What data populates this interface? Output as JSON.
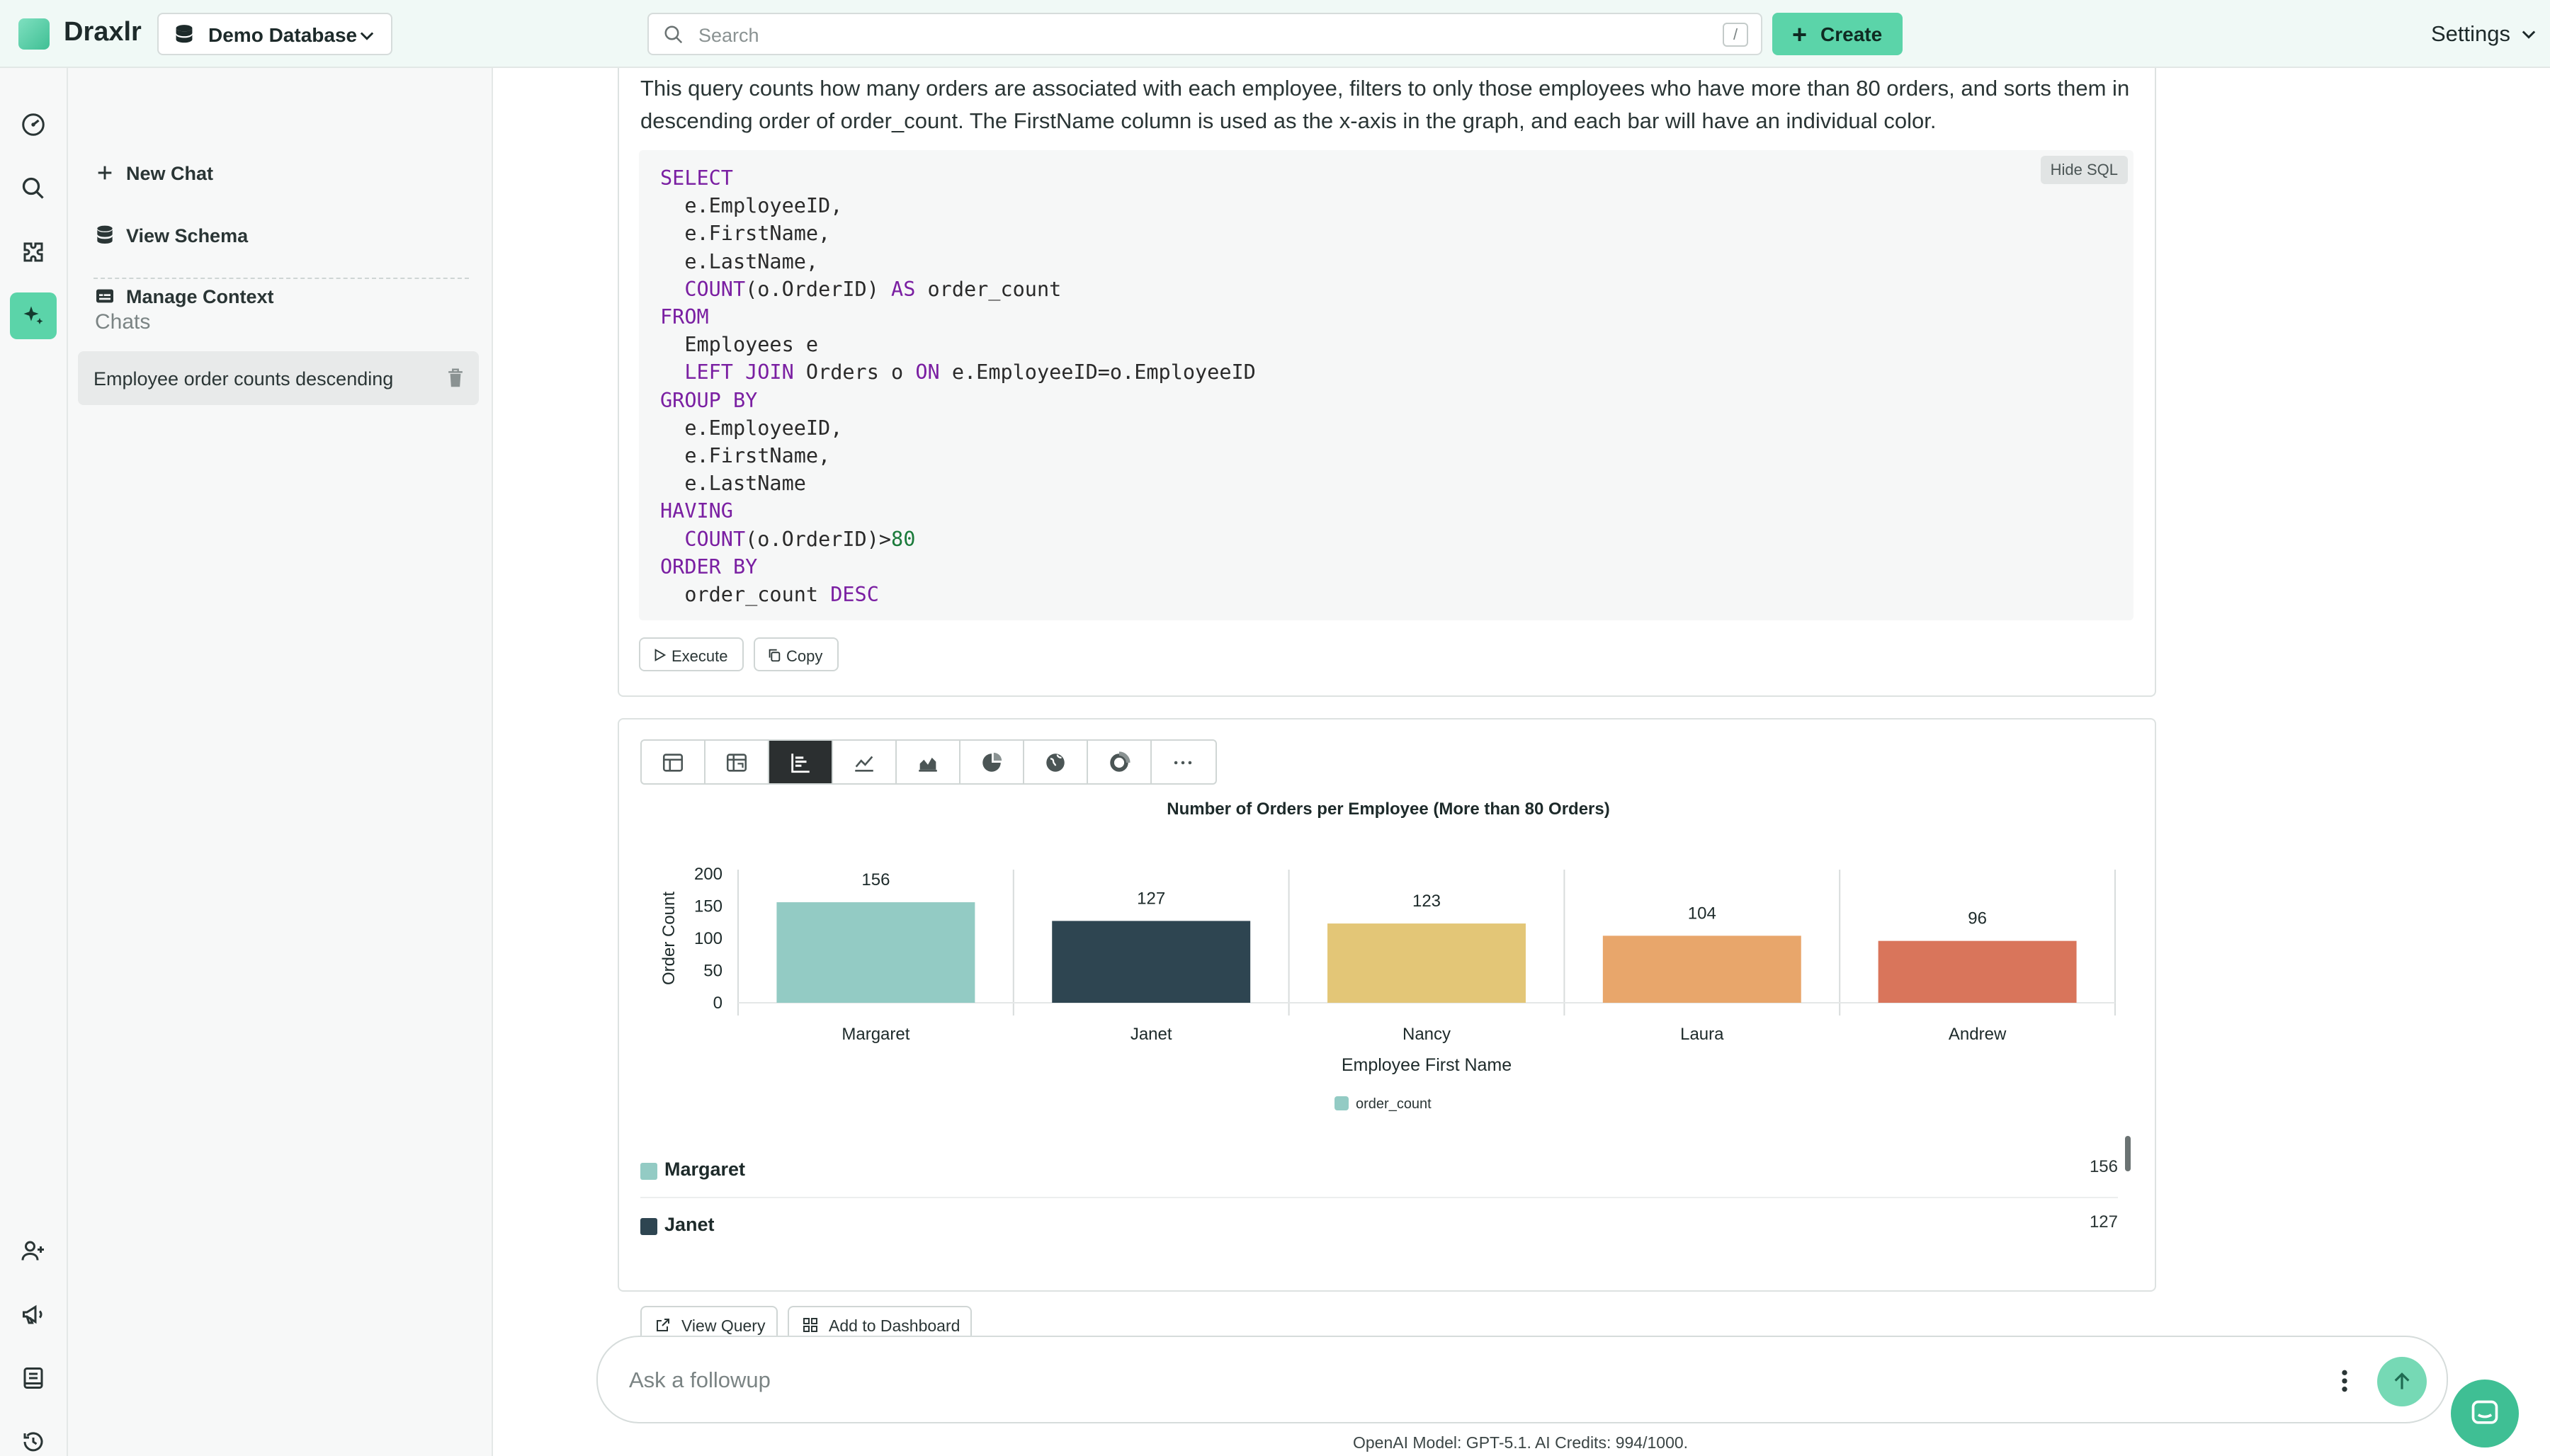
{
  "app": {
    "name": "Draxlr"
  },
  "topbar": {
    "database": "Demo Database",
    "search_placeholder": "Search",
    "search_shortcut": "/",
    "create_label": "Create",
    "settings_label": "Settings"
  },
  "sidebar": {
    "items": [
      {
        "label": "New Chat",
        "icon": "plus-icon"
      },
      {
        "label": "View Schema",
        "icon": "database-icon"
      },
      {
        "label": "Manage Context",
        "icon": "context-icon"
      }
    ],
    "chats_heading": "Chats",
    "chats": [
      {
        "label": "Employee order counts descending"
      }
    ]
  },
  "query_card": {
    "description": "This query counts how many orders are associated with each employee, filters to only those employees who have more than 80 orders, and sorts them in descending order of order_count. The FirstName column is used as the x-axis in the graph, and each bar will have an individual color.",
    "hide_sql_label": "Hide SQL",
    "execute_label": "Execute",
    "copy_label": "Copy",
    "sql": {
      "l1": "SELECT",
      "l2": "  e.EmployeeID,",
      "l3": "  e.FirstName,",
      "l4": "  e.LastName,",
      "l5a": "COUNT",
      "l5b": "(o.OrderID) ",
      "l5c": "AS",
      "l5d": " order_count",
      "l6": "FROM",
      "l7": "  Employees e",
      "l8a": "LEFT JOIN",
      "l8b": " Orders o ",
      "l8c": "ON",
      "l8d": " e.EmployeeID=o.EmployeeID",
      "l9": "GROUP BY",
      "l10": "  e.EmployeeID,",
      "l11": "  e.FirstName,",
      "l12": "  e.LastName",
      "l13": "HAVING",
      "l14a": "COUNT",
      "l14b": "(o.OrderID)>",
      "l14c": "80",
      "l15": "ORDER BY",
      "l16a": "  order_count ",
      "l16b": "DESC"
    }
  },
  "chart_card": {
    "view_types": [
      "table",
      "pivot",
      "bar",
      "line",
      "area",
      "pie",
      "map",
      "donut",
      "more"
    ],
    "active_view": "bar",
    "view_query_label": "View Query",
    "add_dashboard_label": "Add to Dashboard"
  },
  "chart_data": {
    "type": "bar",
    "title": "Number of Orders per Employee (More than 80 Orders)",
    "xlabel": "Employee First Name",
    "ylabel": "Order Count",
    "categories": [
      "Margaret",
      "Janet",
      "Nancy",
      "Laura",
      "Andrew"
    ],
    "series": [
      {
        "name": "order_count",
        "values": [
          156,
          127,
          123,
          104,
          96
        ]
      }
    ],
    "colors": [
      "#93cbc4",
      "#2e4551",
      "#e3c677",
      "#e8a66b",
      "#d9755b"
    ],
    "yticks": [
      0,
      50,
      100,
      150,
      200
    ],
    "ylim": [
      0,
      200
    ],
    "legend": "bottom",
    "grid": true
  },
  "data_table": {
    "rows": [
      {
        "name": "Margaret",
        "value": "156",
        "color": "#93cbc4"
      },
      {
        "name": "Janet",
        "value": "127",
        "color": "#2e4551"
      }
    ]
  },
  "followup": {
    "placeholder": "Ask a followup",
    "model_info": "OpenAI Model: GPT-5.1. AI Credits: 994/1000."
  }
}
